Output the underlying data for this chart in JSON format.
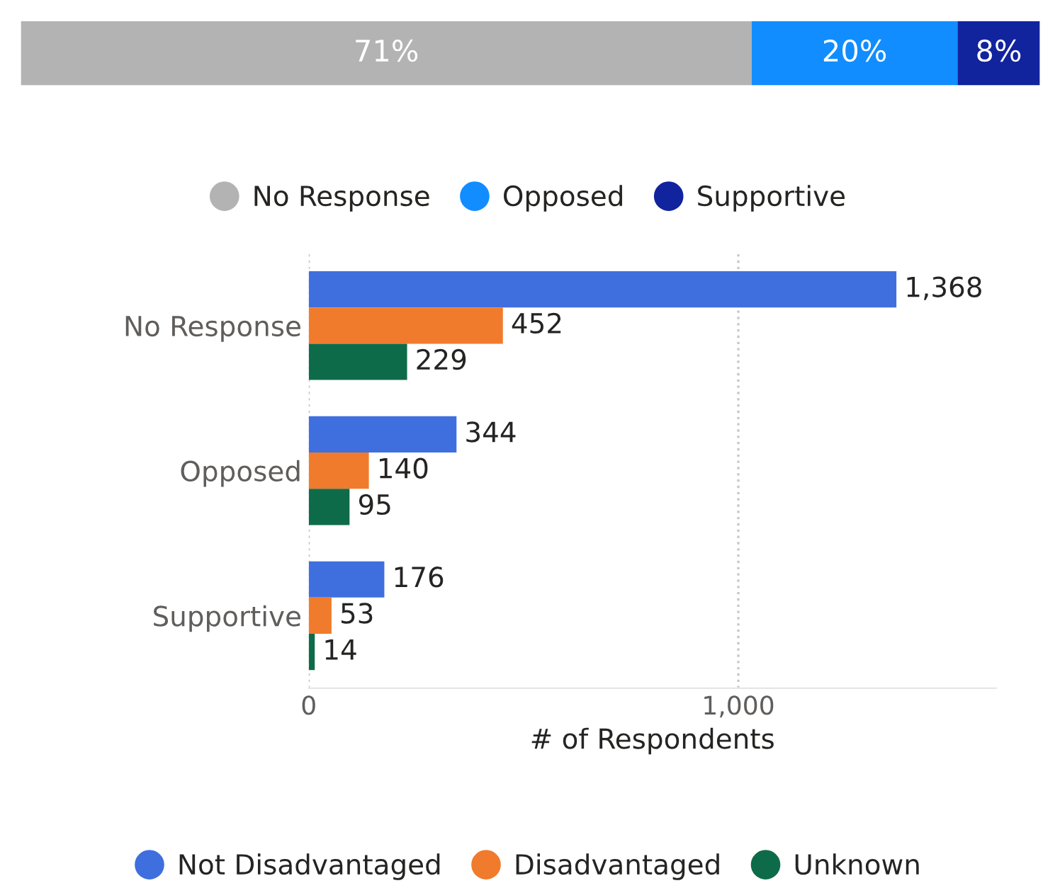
{
  "chart_data": [
    {
      "type": "bar",
      "orientation": "horizontal",
      "stacked": true,
      "categories": [
        null
      ],
      "data_labels": true,
      "legend": "bottom",
      "marker": "circle",
      "series": [
        {
          "name": "No Response",
          "color": "#b3b3b3",
          "values": [
            71
          ],
          "value_labels": [
            "71%"
          ]
        },
        {
          "name": "Opposed",
          "color": "#118dff",
          "values": [
            20
          ],
          "value_labels": [
            "20%"
          ]
        },
        {
          "name": "Supportive",
          "color": "#12239e",
          "values": [
            8
          ],
          "value_labels": [
            "8%"
          ]
        }
      ]
    },
    {
      "type": "bar",
      "orientation": "horizontal",
      "categories": [
        "No Response",
        "Opposed",
        "Supportive"
      ],
      "xlabel": "# of Respondents",
      "xlim": [
        0,
        1600
      ],
      "xticks": [
        0,
        {
          "value": 1000,
          "label": "1,000"
        }
      ],
      "grid": "x",
      "legend": "bottom",
      "marker": "circle",
      "series": [
        {
          "name": "Not Disadvantaged",
          "color": "#3f6fde",
          "values": [
            1368,
            344,
            176
          ],
          "value_labels": [
            "1,368",
            "344",
            "176"
          ]
        },
        {
          "name": "Disadvantaged",
          "color": "#f07b2c",
          "values": [
            452,
            140,
            53
          ],
          "value_labels": [
            "452",
            "140",
            "53"
          ]
        },
        {
          "name": "Unknown",
          "color": "#0e6b4a",
          "values": [
            229,
            95,
            14
          ],
          "value_labels": [
            "229",
            "95",
            "14"
          ]
        }
      ]
    }
  ]
}
